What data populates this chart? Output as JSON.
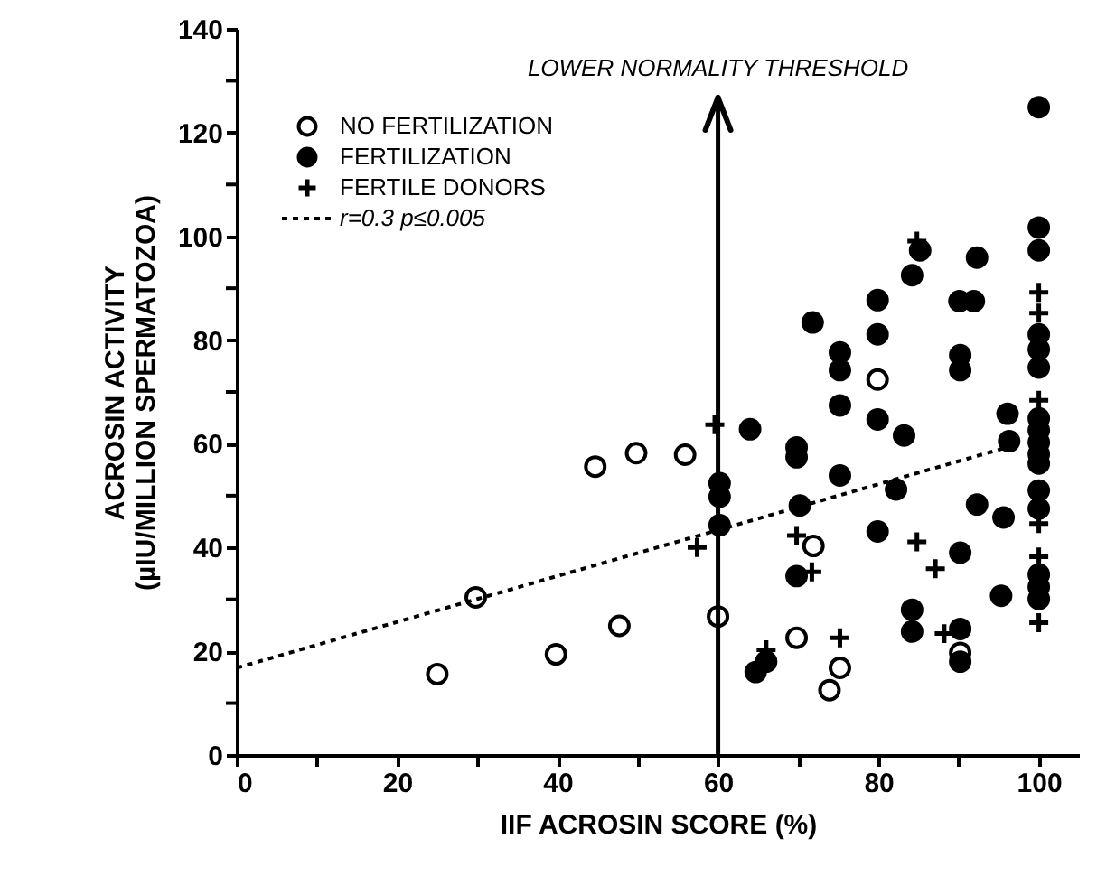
{
  "chart_data": {
    "type": "scatter",
    "xlabel": "IIF ACROSIN SCORE (%)",
    "ylabel": "ACROSIN ACTIVITY\n(µIU/MILLION  SPERMATOZOA)",
    "xlim": [
      0,
      105
    ],
    "ylim": [
      0,
      140
    ],
    "xticks": [
      0,
      {
        "value": 10,
        "label": null
      },
      20,
      {
        "value": 30,
        "label": null
      },
      40,
      {
        "value": 50,
        "label": null
      },
      60,
      {
        "value": 70,
        "label": null
      },
      80,
      {
        "value": 90,
        "label": null
      },
      100
    ],
    "yticks": [
      0,
      {
        "value": 10,
        "label": null
      },
      20,
      {
        "value": 30,
        "label": null
      },
      40,
      {
        "value": 50,
        "label": null
      },
      60,
      {
        "value": 70,
        "label": null
      },
      80,
      {
        "value": 90,
        "label": null
      },
      100,
      {
        "value": 110,
        "label": null
      },
      120,
      {
        "value": 130,
        "label": null
      },
      140
    ],
    "grid": false,
    "legend": "top left",
    "ref_lines": [
      {
        "axis": "x",
        "value": 60,
        "label": "LOWER NORMALITY THRESHOLD",
        "color": "#000000",
        "line_style": "solid"
      }
    ],
    "series": [
      {
        "name": "NO FERTILIZATION",
        "marker": "circle",
        "color": "#000000",
        "x": [
          25,
          29.8,
          39.8,
          44.7,
          47.7,
          49.8,
          55.9,
          60,
          69.8,
          71.9,
          73.9,
          75.2,
          79.9,
          90.2
        ],
        "values": [
          15.6,
          30.4,
          19.4,
          55.6,
          24.9,
          58.2,
          57.9,
          26.7,
          22.6,
          40.3,
          12.5,
          16.8,
          72.4,
          19.7
        ]
      },
      {
        "name": "FERTILIZATION",
        "marker": "circle",
        "color": "#000000",
        "x": [
          60.2,
          60.2,
          60.2,
          64,
          64.7,
          66,
          69.8,
          69.8,
          69.8,
          70.2,
          71.8,
          75.2,
          75.2,
          75.2,
          75.2,
          79.9,
          79.9,
          79.9,
          79.9,
          82.2,
          83.2,
          84.2,
          84.2,
          84.2,
          85.2,
          90.1,
          91.9,
          90.2,
          90.2,
          90.2,
          90.2,
          90.2,
          92.3,
          92.3,
          95.3,
          95.6,
          96.1,
          96.3,
          100,
          100,
          100,
          100,
          100,
          100,
          100,
          100,
          100,
          100,
          100,
          100,
          100,
          100,
          100,
          100
        ],
        "values": [
          44.3,
          49.8,
          52.4,
          62.8,
          16,
          18,
          34.5,
          57.4,
          59.3,
          48.1,
          83.4,
          53.9,
          67.4,
          74.2,
          77.6,
          43.1,
          64.7,
          81.1,
          87.7,
          51.2,
          61.6,
          23.8,
          28,
          92.5,
          97.3,
          87.5,
          87.5,
          18,
          24.3,
          39,
          74.2,
          77.1,
          48.3,
          95.9,
          30.7,
          45.8,
          65.8,
          60.5,
          124.9,
          101.7,
          97.3,
          81.1,
          78.2,
          74.7,
          64.9,
          62.6,
          60.3,
          58,
          56.2,
          51,
          47.5,
          34.8,
          32.4,
          30.1
        ]
      },
      {
        "name": "FERTILE DONORS",
        "marker": "cross",
        "color": "#000000",
        "x": [
          57.4,
          59.6,
          66,
          69.8,
          71.7,
          75.2,
          84.8,
          84.8,
          87.1,
          88.2,
          100,
          100,
          100,
          100,
          100,
          100
        ],
        "values": [
          40,
          63.7,
          20.3,
          42.3,
          35.3,
          22.6,
          41.1,
          99.1,
          35.9,
          23.4,
          89.2,
          85.2,
          68.4,
          44.6,
          38.2,
          25.5
        ]
      },
      {
        "name": "r=0.3  p≤0.005",
        "type": "line",
        "line_style": "dashed",
        "marker": "none",
        "color": "#000000",
        "x": [
          0,
          96
        ],
        "values": [
          16.8,
          59.3
        ]
      }
    ]
  }
}
